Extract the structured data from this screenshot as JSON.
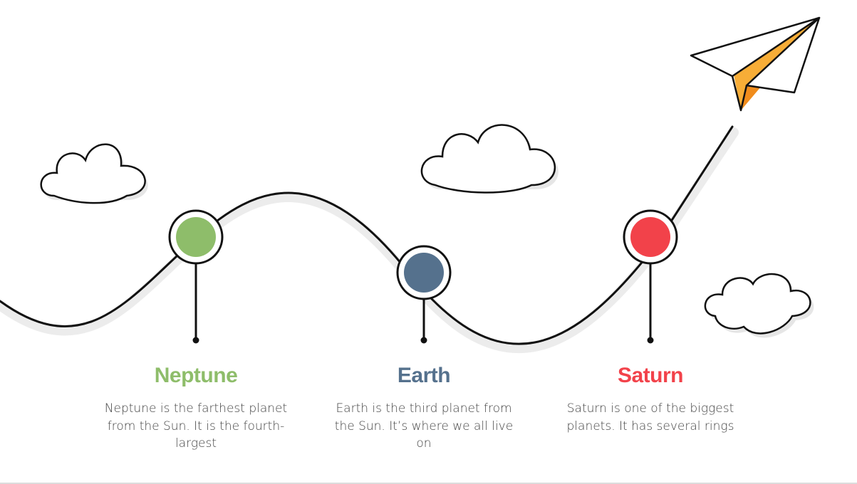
{
  "milestones": [
    {
      "title": "Neptune",
      "description": "Neptune is the farthest planet from the Sun. It is the fourth-largest",
      "color": "#8ebd6a"
    },
    {
      "title": "Earth",
      "description": "Earth is the third planet from the Sun. It’s where we all live on",
      "color": "#55718d"
    },
    {
      "title": "Saturn",
      "description": "Saturn is one of the biggest planets. It has several rings",
      "color": "#f2424a"
    }
  ],
  "colors": {
    "path": "#111111",
    "path_shadow": "#ececec",
    "cloud_fill": "#ffffff",
    "cloud_shadow": "#e6e6e6",
    "plane_body": "#ffffff",
    "plane_wing": "#f7ad37",
    "plane_wing_dark": "#f08c1c"
  },
  "icons": [
    "cloud-icon",
    "paper-plane-icon",
    "map-pin-icon"
  ]
}
